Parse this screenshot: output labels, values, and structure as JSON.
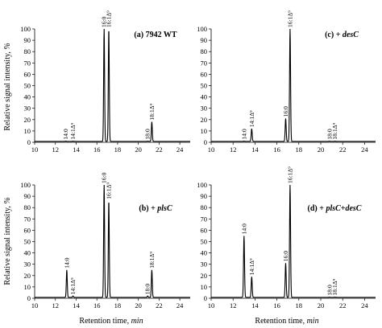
{
  "figure": {
    "ylabel_text": "Relative signal intensity, ",
    "ylabel_unit": "%",
    "xlabel_text": "Retention time, ",
    "xlabel_unit": "min"
  },
  "chart_data": [
    {
      "type": "line",
      "id": "a",
      "title_main": "(a) 7942 WT",
      "title_italic": "",
      "xlim": [
        10,
        25
      ],
      "ylim": [
        0,
        100
      ],
      "xticks": [
        10,
        12,
        14,
        16,
        18,
        20,
        22,
        24
      ],
      "yticks": [
        0,
        10,
        20,
        30,
        40,
        50,
        60,
        70,
        80,
        90,
        100
      ],
      "peaks": [
        {
          "label": "14:0",
          "x": 13.0,
          "y": 1
        },
        {
          "label": "14:1Δ⁹",
          "x": 13.7,
          "y": 1
        },
        {
          "label": "16:0",
          "x": 16.7,
          "y": 100
        },
        {
          "label": "16:1Δ⁹",
          "x": 17.15,
          "y": 100
        },
        {
          "label": "18:0",
          "x": 20.9,
          "y": 1
        },
        {
          "label": "18:1Δ⁹",
          "x": 21.3,
          "y": 18
        }
      ]
    },
    {
      "type": "line",
      "id": "b",
      "title_main": "(b) + ",
      "title_italic": "plsC",
      "xlim": [
        10,
        25
      ],
      "ylim": [
        0,
        100
      ],
      "xticks": [
        10,
        12,
        14,
        16,
        18,
        20,
        22,
        24
      ],
      "yticks": [
        0,
        10,
        20,
        30,
        40,
        50,
        60,
        70,
        80,
        90,
        100
      ],
      "peaks": [
        {
          "label": "14:0",
          "x": 13.1,
          "y": 25
        },
        {
          "label": "14:1Δ⁹",
          "x": 13.7,
          "y": 2
        },
        {
          "label": "16:0",
          "x": 16.7,
          "y": 100
        },
        {
          "label": "16:1Δ⁹",
          "x": 17.15,
          "y": 86
        },
        {
          "label": "18:0",
          "x": 20.9,
          "y": 2
        },
        {
          "label": "18:1Δ⁹",
          "x": 21.3,
          "y": 25
        }
      ]
    },
    {
      "type": "line",
      "id": "c",
      "title_main": "(c) + ",
      "title_italic": "desC",
      "xlim": [
        10,
        25
      ],
      "ylim": [
        0,
        100
      ],
      "xticks": [
        10,
        12,
        14,
        16,
        18,
        20,
        22,
        24
      ],
      "yticks": [
        0,
        10,
        20,
        30,
        40,
        50,
        60,
        70,
        80,
        90,
        100
      ],
      "peaks": [
        {
          "label": "14:0",
          "x": 13.0,
          "y": 1
        },
        {
          "label": "14:1Δ⁹",
          "x": 13.7,
          "y": 12
        },
        {
          "label": "16:0",
          "x": 16.8,
          "y": 21
        },
        {
          "label": "16:1Δ⁹",
          "x": 17.2,
          "y": 100
        },
        {
          "label": "18:0",
          "x": 20.8,
          "y": 1
        },
        {
          "label": "18:1Δ⁹",
          "x": 21.3,
          "y": 1
        }
      ]
    },
    {
      "type": "line",
      "id": "d",
      "title_main": "(d) + ",
      "title_italic": "plsC+desC",
      "xlim": [
        10,
        25
      ],
      "ylim": [
        0,
        100
      ],
      "xticks": [
        10,
        12,
        14,
        16,
        18,
        20,
        22,
        24
      ],
      "yticks": [
        0,
        10,
        20,
        30,
        40,
        50,
        60,
        70,
        80,
        90,
        100
      ],
      "peaks": [
        {
          "label": "14:0",
          "x": 13.0,
          "y": 55
        },
        {
          "label": "14:1Δ⁹",
          "x": 13.7,
          "y": 19
        },
        {
          "label": "16:0",
          "x": 16.8,
          "y": 31
        },
        {
          "label": "16:1Δ⁹",
          "x": 17.2,
          "y": 100
        },
        {
          "label": "18:0",
          "x": 20.8,
          "y": 1
        },
        {
          "label": "18:1Δ⁹",
          "x": 21.3,
          "y": 1
        }
      ]
    }
  ]
}
